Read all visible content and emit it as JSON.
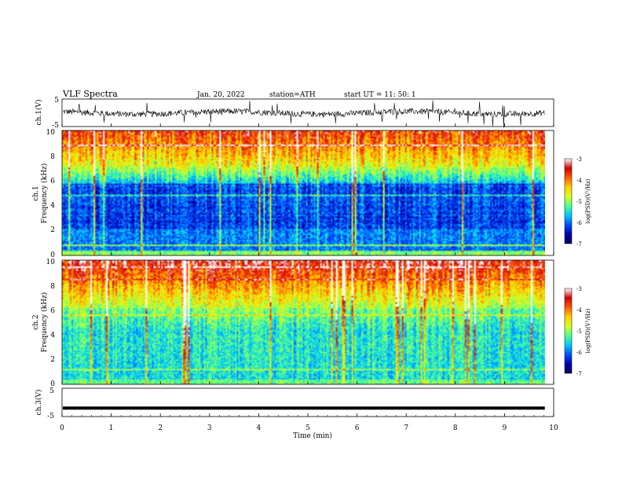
{
  "header": {
    "title": "VLF  Spectra",
    "date": "Jan. 20, 2022",
    "station": "station=ATH",
    "start": "start  UT  =    11: 50: 1"
  },
  "chart_data": [
    {
      "type": "line",
      "panel": "ch1-waveform",
      "ylabel": "ch.1(V)",
      "ylim": [
        -5,
        5
      ],
      "yticks": [
        "5",
        "-5"
      ],
      "xlim": [
        0,
        10
      ],
      "baseline_v": 0,
      "data_extent_min": 9.82
    },
    {
      "type": "heatmap",
      "panel": "ch1-spectrogram",
      "ylabel": "ch.1\nFrequency  (kHz)",
      "ylim": [
        0,
        10
      ],
      "yticks": [
        "0",
        "2",
        "4",
        "6",
        "8",
        "10"
      ],
      "xlim": [
        0,
        10
      ],
      "data_extent_min": 9.82,
      "colorbar": {
        "label": "log(PSD)(V²/Hz)",
        "range": [
          -7,
          -3
        ],
        "ticks": [
          "-3",
          "-4",
          "-5",
          "-6",
          "-7"
        ]
      }
    },
    {
      "type": "heatmap",
      "panel": "ch2-spectrogram",
      "ylabel": "ch.2\nFrequency  (kHz)",
      "ylim": [
        0,
        10
      ],
      "yticks": [
        "0",
        "2",
        "4",
        "6",
        "8",
        "10"
      ],
      "xlim": [
        0,
        10
      ],
      "data_extent_min": 9.82,
      "colorbar": {
        "label": "log(PSD)(V²/Hz)",
        "range": [
          -7,
          -3
        ],
        "ticks": [
          "-3",
          "-4",
          "-5",
          "-6",
          "-7"
        ]
      }
    },
    {
      "type": "line",
      "panel": "ch3-waveform",
      "ylabel": "ch.3(V)",
      "ylim": [
        -5,
        5
      ],
      "yticks": [
        "5",
        "-5"
      ],
      "xlim": [
        0,
        10
      ],
      "baseline_v": -2,
      "data_extent_min": 9.82
    }
  ],
  "xaxis": {
    "label": "Time  (min)",
    "ticks": [
      "0",
      "1",
      "2",
      "3",
      "4",
      "5",
      "6",
      "7",
      "8",
      "9",
      "10"
    ]
  },
  "colors": {
    "colormap": [
      "#000060",
      "#0000b0",
      "#0050ff",
      "#00c8ff",
      "#50ff90",
      "#d8ff20",
      "#ffd000",
      "#ff5a00",
      "#d00000",
      "#ffffff"
    ]
  }
}
